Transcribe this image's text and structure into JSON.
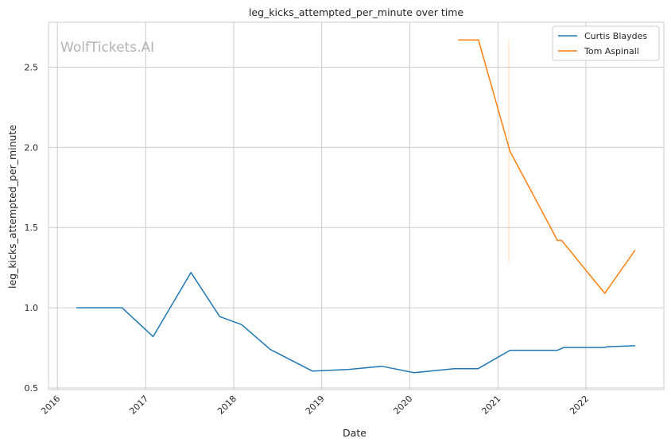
{
  "chart_data": {
    "type": "line",
    "title": "leg_kicks_attempted_per_minute over time",
    "xlabel": "Date",
    "ylabel": "leg_kicks_attempted_per_minute",
    "watermark": "WolfTickets.AI",
    "grid": true,
    "legend_position": "top-right",
    "xlim": [
      "2015-11-25",
      "2022-11-20"
    ],
    "ylim": [
      0.49,
      2.78
    ],
    "x_ticks": [
      "2016",
      "2017",
      "2018",
      "2019",
      "2020",
      "2021",
      "2022"
    ],
    "y_ticks": [
      "0.5",
      "1.0",
      "1.5",
      "2.0",
      "2.5"
    ],
    "series": [
      {
        "name": "Curtis Blaydes",
        "color": "#1f77b4",
        "points": [
          [
            "2016-03-20",
            1.0
          ],
          [
            "2016-09-25",
            1.0
          ],
          [
            "2017-02-01",
            0.82
          ],
          [
            "2017-07-08",
            1.22
          ],
          [
            "2017-11-04",
            0.945
          ],
          [
            "2018-02-03",
            0.895
          ],
          [
            "2018-06-02",
            0.74
          ],
          [
            "2018-11-24",
            0.605
          ],
          [
            "2019-04-20",
            0.615
          ],
          [
            "2019-09-07",
            0.635
          ],
          [
            "2020-01-20",
            0.595
          ],
          [
            "2020-07-04",
            0.62
          ],
          [
            "2020-10-10",
            0.62
          ],
          [
            "2021-02-20",
            0.735
          ],
          [
            "2021-09-05",
            0.735
          ],
          [
            "2021-10-01",
            0.752
          ],
          [
            "2022-03-20",
            0.752
          ],
          [
            "2022-03-30",
            0.757
          ],
          [
            "2022-07-24",
            0.763
          ]
        ]
      },
      {
        "name": "Tom Aspinall",
        "color": "#ff7f0e",
        "points": [
          [
            "2020-07-20",
            2.67
          ],
          [
            "2020-10-12",
            2.67
          ],
          [
            "2021-02-20",
            1.975
          ],
          [
            "2021-09-05",
            1.42
          ],
          [
            "2021-09-22",
            1.42
          ],
          [
            "2022-03-20",
            1.09
          ],
          [
            "2022-07-24",
            1.36
          ]
        ]
      }
    ]
  }
}
